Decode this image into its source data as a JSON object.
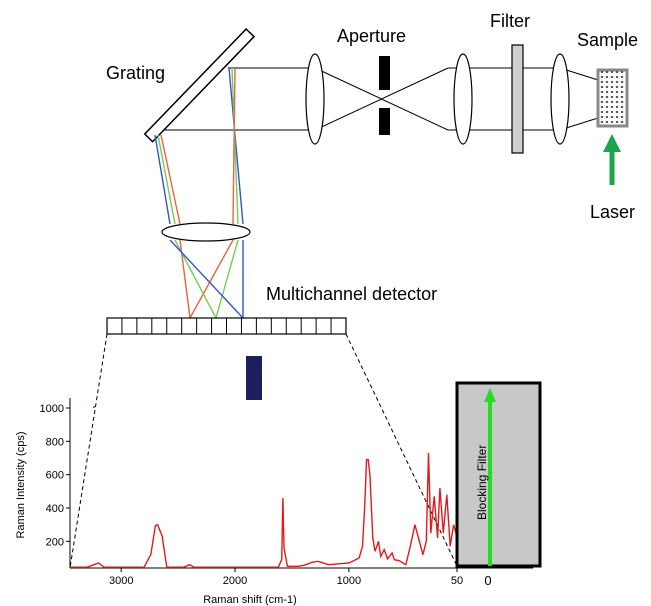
{
  "labels": {
    "grating": "Grating",
    "aperture": "Aperture",
    "filter": "Filter",
    "sample": "Sample",
    "laser": "Laser",
    "detector": "Multichannel detector",
    "blocking_filter": "Blocking Filter"
  },
  "colors": {
    "spectrum": "#e31a1c",
    "laser_arrow": "#1aa64a",
    "filter_arrow": "#22dd22",
    "ray_red": "#e8653a",
    "ray_green": "#77cc55",
    "ray_blue": "#3355cc",
    "detector_bar": "#1c1f5e",
    "blocking_filter_fill": "#c8c8c8"
  },
  "chart_data": {
    "type": "line",
    "xlabel": "Raman shift (cm-1)",
    "ylabel": "Raman Intensity (cps)",
    "x_ticks": [
      "3000",
      "2000",
      "1000",
      "50"
    ],
    "y_ticks": [
      "1000",
      "800",
      "600",
      "400",
      "200"
    ],
    "x_reversed": true,
    "xlim": [
      3450,
      50
    ],
    "ylim": [
      40,
      1060
    ],
    "filter_zero_label": "0",
    "series": [
      {
        "x": [
          3450,
          3300,
          3220,
          3200,
          3150,
          2800,
          2740,
          2700,
          2680,
          2640,
          2600,
          2450,
          2400,
          2360,
          2000,
          1620,
          1590,
          1580,
          1570,
          1540,
          1450,
          1400,
          1380,
          1320,
          1270,
          1180,
          1000,
          910,
          880,
          860,
          845,
          830,
          815,
          790,
          770,
          740,
          720,
          690,
          660,
          620,
          600,
          560,
          500,
          460,
          420,
          380,
          350,
          320,
          300,
          280,
          250,
          220,
          200,
          170,
          140,
          110,
          80,
          60,
          50
        ],
        "y": [
          45,
          45,
          65,
          70,
          45,
          45,
          120,
          295,
          300,
          230,
          45,
          45,
          60,
          45,
          45,
          45,
          90,
          460,
          160,
          50,
          50,
          55,
          60,
          75,
          80,
          60,
          70,
          100,
          170,
          420,
          690,
          690,
          600,
          220,
          140,
          200,
          110,
          150,
          95,
          130,
          90,
          85,
          60,
          170,
          300,
          200,
          120,
          200,
          730,
          250,
          470,
          220,
          520,
          250,
          480,
          170,
          300,
          250,
          200
        ]
      }
    ]
  }
}
